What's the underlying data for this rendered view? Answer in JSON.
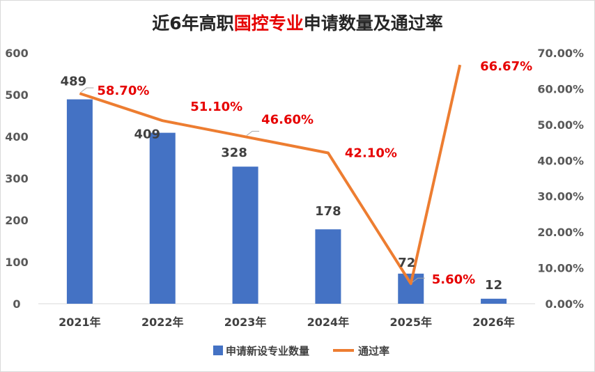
{
  "title": {
    "prefix": "近6年高职",
    "highlight": "国控专业",
    "suffix": "申请数量及通过率"
  },
  "colors": {
    "bar": "#4472c4",
    "line": "#ed7d31",
    "rate_label": "#e60000",
    "title_highlight": "#e60000"
  },
  "chart_data": {
    "type": "bar",
    "categories": [
      "2021年",
      "2022年",
      "2023年",
      "2024年",
      "2025年",
      "2026年"
    ],
    "series": [
      {
        "name": "申请新设专业数量",
        "type": "bar",
        "axis": "left",
        "values": [
          489,
          409,
          328,
          178,
          72,
          12
        ],
        "labels": [
          "489",
          "409",
          "328",
          "178",
          "72",
          "12"
        ]
      },
      {
        "name": "通过率",
        "type": "line",
        "axis": "right",
        "values": [
          58.7,
          51.1,
          46.6,
          42.1,
          5.6,
          66.67
        ],
        "labels": [
          "58.70%",
          "51.10%",
          "46.60%",
          "42.10%",
          "5.60%",
          "66.67%"
        ]
      }
    ],
    "left_axis": {
      "ylim": [
        0,
        600
      ],
      "ticks": [
        0,
        100,
        200,
        300,
        400,
        500,
        600
      ],
      "tick_labels": [
        "0",
        "100",
        "200",
        "300",
        "400",
        "500",
        "600"
      ]
    },
    "right_axis": {
      "ylim": [
        0,
        70
      ],
      "ticks": [
        0,
        10,
        20,
        30,
        40,
        50,
        60,
        70
      ],
      "tick_labels": [
        "0.00%",
        "10.00%",
        "20.00%",
        "30.00%",
        "40.00%",
        "50.00%",
        "60.00%",
        "70.00%"
      ]
    },
    "grid": false,
    "legend_position": "bottom"
  }
}
